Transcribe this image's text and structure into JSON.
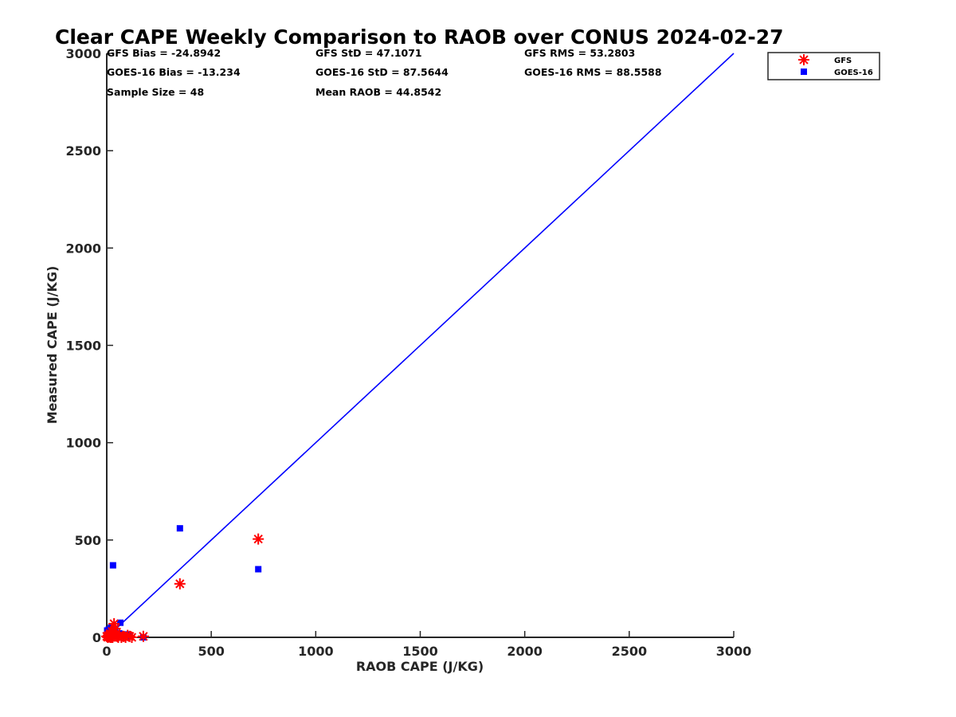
{
  "chart_data": {
    "type": "scatter",
    "title": "Clear CAPE Weekly Comparison to RAOB over CONUS 2024-02-27",
    "xlabel": "RAOB CAPE (J/KG)",
    "ylabel": "Measured CAPE (J/KG)",
    "xlim": [
      0,
      3000
    ],
    "ylim": [
      0,
      3000
    ],
    "xticks": [
      "0",
      "500",
      "1000",
      "1500",
      "2000",
      "2500",
      "3000"
    ],
    "yticks": [
      "0",
      "500",
      "1000",
      "1500",
      "2000",
      "2500",
      "3000"
    ],
    "grid": false,
    "legend_position": "top-right, outside plot",
    "stats": [
      "GFS Bias = -24.8942",
      "GFS StD = 47.1071",
      "GFS RMS = 53.2803",
      "GOES-16 Bias = -13.234",
      "GOES-16 StD = 87.5644",
      "GOES-16 RMS = 88.5588",
      "Sample Size = 48",
      "Mean RAOB = 44.8542"
    ],
    "reference_line": {
      "x": [
        0,
        3000
      ],
      "y": [
        0,
        3000
      ],
      "color": "#0000ff"
    },
    "series": [
      {
        "name": "GFS",
        "marker": "asterisk",
        "color": "#ff0000",
        "x": [
          0,
          5,
          8,
          12,
          15,
          18,
          20,
          22,
          25,
          28,
          30,
          35,
          40,
          45,
          50,
          55,
          60,
          70,
          80,
          90,
          100,
          110,
          120,
          175,
          350,
          725
        ],
        "y": [
          5,
          0,
          10,
          2,
          20,
          0,
          5,
          0,
          30,
          0,
          10,
          70,
          45,
          20,
          5,
          0,
          10,
          0,
          5,
          0,
          10,
          5,
          0,
          5,
          275,
          505
        ]
      },
      {
        "name": "GOES-16",
        "marker": "square",
        "color": "#0000ff",
        "x": [
          0,
          2,
          5,
          8,
          10,
          12,
          15,
          18,
          20,
          22,
          25,
          28,
          30,
          35,
          40,
          45,
          50,
          60,
          65,
          75,
          90,
          100,
          110,
          175,
          350,
          725
        ],
        "y": [
          10,
          35,
          5,
          20,
          40,
          0,
          30,
          10,
          50,
          5,
          15,
          25,
          370,
          20,
          45,
          10,
          0,
          20,
          75,
          5,
          10,
          15,
          5,
          0,
          560,
          350
        ]
      }
    ]
  }
}
